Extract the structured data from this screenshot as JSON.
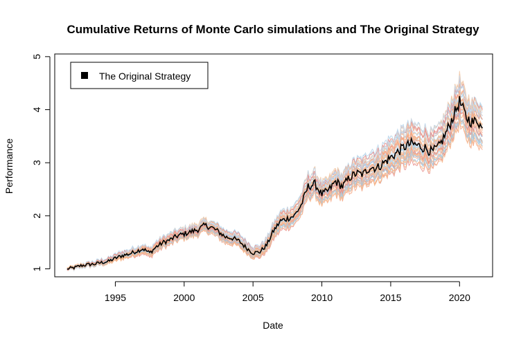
{
  "chart_data": {
    "type": "line",
    "title": "Cumulative Returns of Monte Carlo simulations and The Original Strategy",
    "xlabel": "Date",
    "ylabel": "Performance",
    "xlim": [
      1990.6,
      2022.4
    ],
    "ylim": [
      0.85,
      5.05
    ],
    "x_ticks": [
      1995,
      2000,
      2005,
      2010,
      2015,
      2020
    ],
    "y_ticks": [
      1,
      2,
      3,
      4,
      5
    ],
    "grid": false,
    "legend": {
      "position": "top-left",
      "entries": [
        "The Original Strategy"
      ]
    },
    "x_start": 1991.5,
    "x_end": 2021.7,
    "original_strategy": {
      "name": "The Original Strategy",
      "color": "#000000",
      "points": [
        [
          1991.5,
          1.0
        ],
        [
          1992.0,
          1.02
        ],
        [
          1992.5,
          1.06
        ],
        [
          1993.0,
          1.08
        ],
        [
          1993.5,
          1.09
        ],
        [
          1994.0,
          1.12
        ],
        [
          1994.5,
          1.14
        ],
        [
          1995.0,
          1.2
        ],
        [
          1995.5,
          1.25
        ],
        [
          1996.0,
          1.28
        ],
        [
          1996.5,
          1.33
        ],
        [
          1997.0,
          1.38
        ],
        [
          1997.5,
          1.3
        ],
        [
          1998.0,
          1.42
        ],
        [
          1998.5,
          1.5
        ],
        [
          1999.0,
          1.55
        ],
        [
          1999.5,
          1.62
        ],
        [
          2000.0,
          1.66
        ],
        [
          2000.5,
          1.7
        ],
        [
          2001.0,
          1.74
        ],
        [
          2001.5,
          1.82
        ],
        [
          2002.0,
          1.78
        ],
        [
          2002.5,
          1.7
        ],
        [
          2003.0,
          1.6
        ],
        [
          2003.5,
          1.58
        ],
        [
          2004.0,
          1.52
        ],
        [
          2004.5,
          1.4
        ],
        [
          2005.0,
          1.3
        ],
        [
          2005.5,
          1.32
        ],
        [
          2006.0,
          1.45
        ],
        [
          2006.5,
          1.72
        ],
        [
          2007.0,
          1.9
        ],
        [
          2007.5,
          1.95
        ],
        [
          2008.0,
          2.0
        ],
        [
          2008.5,
          2.2
        ],
        [
          2009.0,
          2.55
        ],
        [
          2009.5,
          2.6
        ],
        [
          2010.0,
          2.4
        ],
        [
          2010.5,
          2.48
        ],
        [
          2011.0,
          2.65
        ],
        [
          2011.5,
          2.55
        ],
        [
          2012.0,
          2.72
        ],
        [
          2012.5,
          2.8
        ],
        [
          2013.0,
          2.78
        ],
        [
          2013.5,
          2.92
        ],
        [
          2014.0,
          2.9
        ],
        [
          2014.5,
          3.0
        ],
        [
          2015.0,
          3.1
        ],
        [
          2015.5,
          3.2
        ],
        [
          2016.0,
          3.3
        ],
        [
          2016.5,
          3.36
        ],
        [
          2017.0,
          3.32
        ],
        [
          2017.5,
          3.28
        ],
        [
          2018.0,
          3.2
        ],
        [
          2018.5,
          3.3
        ],
        [
          2019.0,
          3.55
        ],
        [
          2019.5,
          3.85
        ],
        [
          2020.0,
          4.15
        ],
        [
          2020.5,
          3.85
        ],
        [
          2021.0,
          3.75
        ],
        [
          2021.3,
          3.82
        ],
        [
          2021.7,
          3.6
        ]
      ]
    },
    "simulations": {
      "count": 40,
      "palette": [
        "#9ec9e6",
        "#b4d4ea",
        "#f4a582",
        "#f6b98e",
        "#e88c88",
        "#f1c9a8",
        "#c6dbef",
        "#fbb98a"
      ]
    }
  }
}
